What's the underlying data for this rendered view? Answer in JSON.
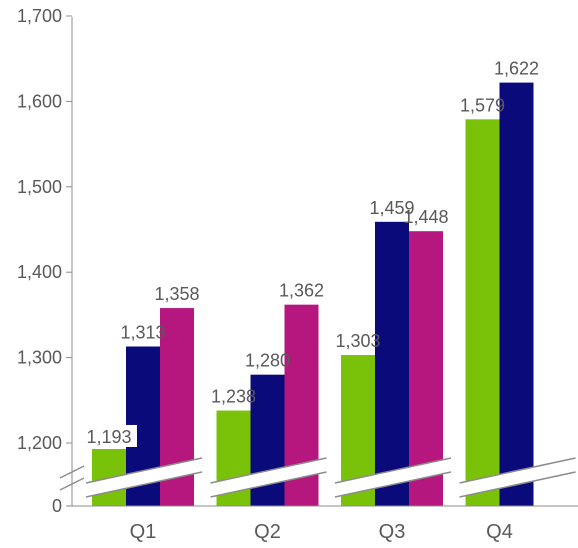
{
  "chart_data": {
    "type": "bar",
    "categories": [
      "Q1",
      "Q2",
      "Q3",
      "Q4"
    ],
    "series": [
      {
        "values": [
          1193,
          1238,
          1303,
          1579
        ],
        "color": "#7ac10a"
      },
      {
        "values": [
          1313,
          1280,
          1459,
          1622
        ],
        "color": "#0a0a7a"
      },
      {
        "values": [
          1358,
          1362,
          1448,
          null
        ],
        "color": "#b5177e"
      }
    ],
    "value_labels": [
      [
        "1,193",
        "1,238",
        "1,303",
        "1,579"
      ],
      [
        "1,313",
        "1,280",
        "1,459",
        "1,622"
      ],
      [
        "1,358",
        "1,362",
        "1,448",
        ""
      ]
    ],
    "y_ticks": [
      {
        "value": 0,
        "label": "0"
      },
      {
        "value": 1200,
        "label": "1,200"
      },
      {
        "value": 1300,
        "label": "1,300"
      },
      {
        "value": 1400,
        "label": "1,400"
      },
      {
        "value": 1500,
        "label": "1,500"
      },
      {
        "value": 1600,
        "label": "1,600"
      },
      {
        "value": 1700,
        "label": "1,700"
      }
    ],
    "ylim": [
      1200,
      1700
    ],
    "axis_break": true,
    "grid": false,
    "legend": "none",
    "title": "",
    "xlabel": "",
    "ylabel": ""
  }
}
